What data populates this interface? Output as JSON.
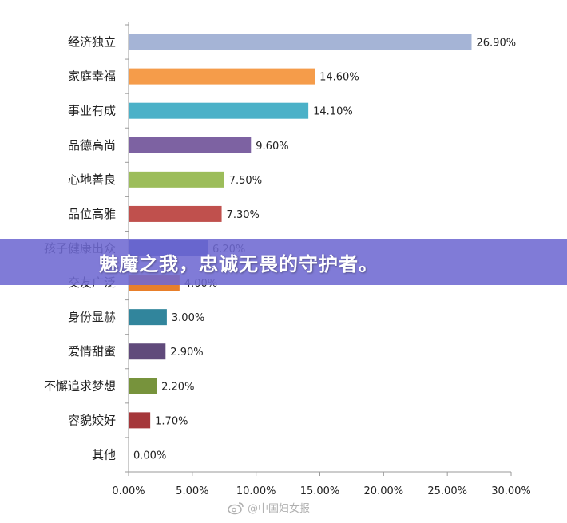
{
  "chart_data": {
    "type": "bar",
    "orientation": "horizontal",
    "categories": [
      "经济独立",
      "家庭幸福",
      "事业有成",
      "品德高尚",
      "心地善良",
      "品位高雅",
      "孩子健康出众",
      "交友广泛",
      "身份显赫",
      "爱情甜蜜",
      "不懈追求梦想",
      "容貌姣好",
      "其他"
    ],
    "values": [
      26.9,
      14.6,
      14.1,
      9.6,
      7.5,
      7.3,
      6.2,
      4.0,
      3.0,
      2.9,
      2.2,
      1.7,
      0.0
    ],
    "value_labels": [
      "26.90%",
      "14.60%",
      "14.10%",
      "9.60%",
      "7.50%",
      "7.30%",
      "6.20%",
      "4.00%",
      "3.00%",
      "2.90%",
      "2.20%",
      "1.70%",
      "0.00%"
    ],
    "colors": [
      "#a5b4d6",
      "#f59c4a",
      "#4bb1c8",
      "#7d62a2",
      "#9cbd5a",
      "#c0504d",
      "#3f51b5",
      "#e87f2a",
      "#31859c",
      "#604a7b",
      "#77933c",
      "#a5373a",
      "#888888"
    ],
    "xlim": [
      0,
      30
    ],
    "xticks": [
      "0.00%",
      "5.00%",
      "10.00%",
      "15.00%",
      "20.00%",
      "25.00%",
      "30.00%"
    ],
    "grid": false,
    "legend": "none"
  },
  "banner": {
    "text": "魅魔之我，忠诚无畏的守护者。"
  },
  "watermark": {
    "text": "@中国妇女报"
  }
}
